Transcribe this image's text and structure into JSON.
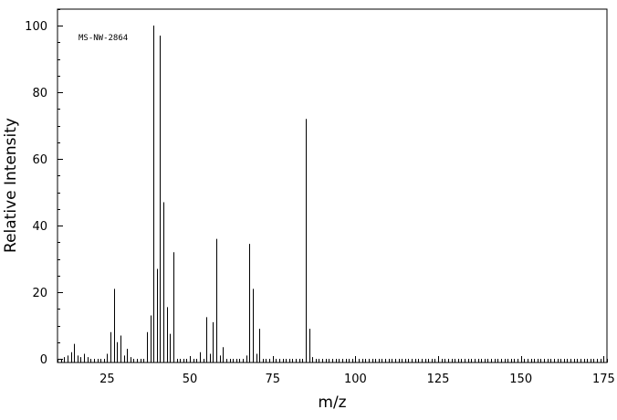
{
  "chart_data": {
    "type": "bar",
    "title": "",
    "annotation": "MS-NW-2864",
    "xlabel": "m/z",
    "ylabel": "Relative Intensity",
    "xlim": [
      10,
      176
    ],
    "ylim": [
      0,
      105
    ],
    "x_ticks": [
      25,
      50,
      75,
      100,
      125,
      150,
      175
    ],
    "x_minor_step": 1,
    "y_ticks": [
      0,
      20,
      40,
      60,
      80,
      100
    ],
    "y_minor_step": 5,
    "grid": false,
    "legend": "none",
    "series": [
      {
        "x": [
          12,
          13,
          14,
          15,
          16,
          17,
          18,
          19,
          25,
          26,
          27,
          28,
          29,
          30,
          31,
          32,
          37,
          38,
          39,
          40,
          41,
          42,
          43,
          44,
          45,
          53,
          55,
          56,
          57,
          58,
          59,
          60,
          67,
          68,
          69,
          70,
          71,
          85,
          86,
          87
        ],
        "values": [
          0.5,
          1.0,
          2.0,
          4.5,
          1.0,
          0.5,
          1.5,
          0.5,
          1.5,
          8.0,
          21.0,
          5.0,
          7.0,
          1.0,
          3.0,
          0.5,
          8.0,
          13.0,
          100.0,
          27.0,
          97.0,
          47.0,
          15.5,
          7.5,
          32.0,
          2.0,
          12.5,
          1.5,
          11.0,
          36.0,
          1.0,
          3.5,
          1.0,
          34.5,
          21.0,
          1.5,
          9.0,
          72.0,
          9.0,
          0.5
        ]
      }
    ]
  }
}
